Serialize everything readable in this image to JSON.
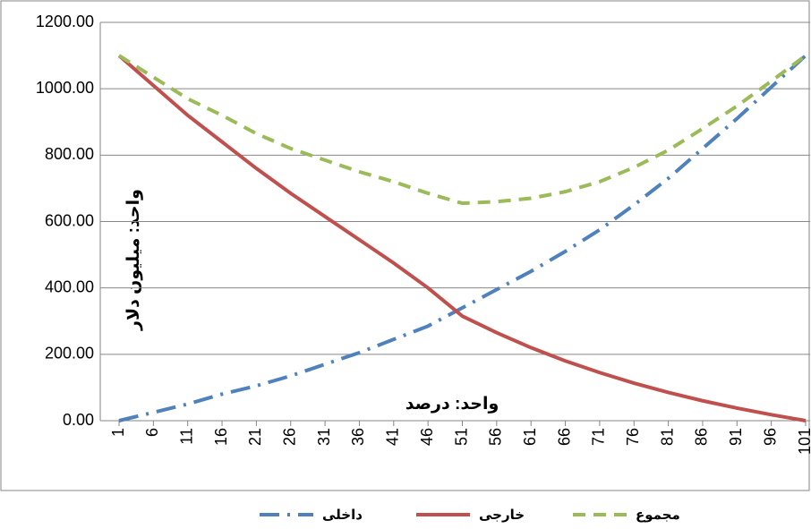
{
  "chart_data": {
    "type": "line",
    "y_label": "واحد: میلیون دلار",
    "annotation": "واحد: درصد",
    "x": [
      1,
      6,
      11,
      16,
      21,
      26,
      31,
      36,
      41,
      46,
      51,
      56,
      61,
      66,
      71,
      76,
      81,
      86,
      91,
      96,
      101
    ],
    "xlim": [
      1,
      101
    ],
    "xticks": [
      1,
      6,
      11,
      16,
      21,
      26,
      31,
      36,
      41,
      46,
      51,
      56,
      61,
      66,
      71,
      76,
      81,
      86,
      91,
      96,
      101
    ],
    "ylim": [
      0,
      1200
    ],
    "yticks": [
      {
        "value": 0,
        "label": "0.00"
      },
      {
        "value": 200,
        "label": "200.00"
      },
      {
        "value": 400,
        "label": "400.00"
      },
      {
        "value": 600,
        "label": "600.00"
      },
      {
        "value": 800,
        "label": "800.00"
      },
      {
        "value": 1000,
        "label": "1000.00"
      },
      {
        "value": 1200,
        "label": "1200.00"
      }
    ],
    "grid": true,
    "series": [
      {
        "name": "داخلی",
        "color": "#4f81bd",
        "style": "dash-dot",
        "values": [
          0,
          25,
          50,
          80,
          105,
          135,
          170,
          205,
          245,
          285,
          340,
          395,
          450,
          510,
          575,
          650,
          730,
          820,
          910,
          1005,
          1100
        ]
      },
      {
        "name": "خارجی",
        "color": "#c0504d",
        "style": "solid",
        "values": [
          1100,
          1010,
          920,
          840,
          760,
          685,
          615,
          545,
          475,
          400,
          315,
          265,
          220,
          180,
          145,
          113,
          85,
          60,
          38,
          18,
          0
        ]
      },
      {
        "name": "مجموع",
        "color": "#9bbb59",
        "style": "dash",
        "values": [
          1100,
          1035,
          970,
          920,
          865,
          820,
          785,
          750,
          720,
          685,
          655,
          660,
          670,
          690,
          720,
          763,
          815,
          880,
          948,
          1023,
          1100
        ]
      }
    ]
  }
}
